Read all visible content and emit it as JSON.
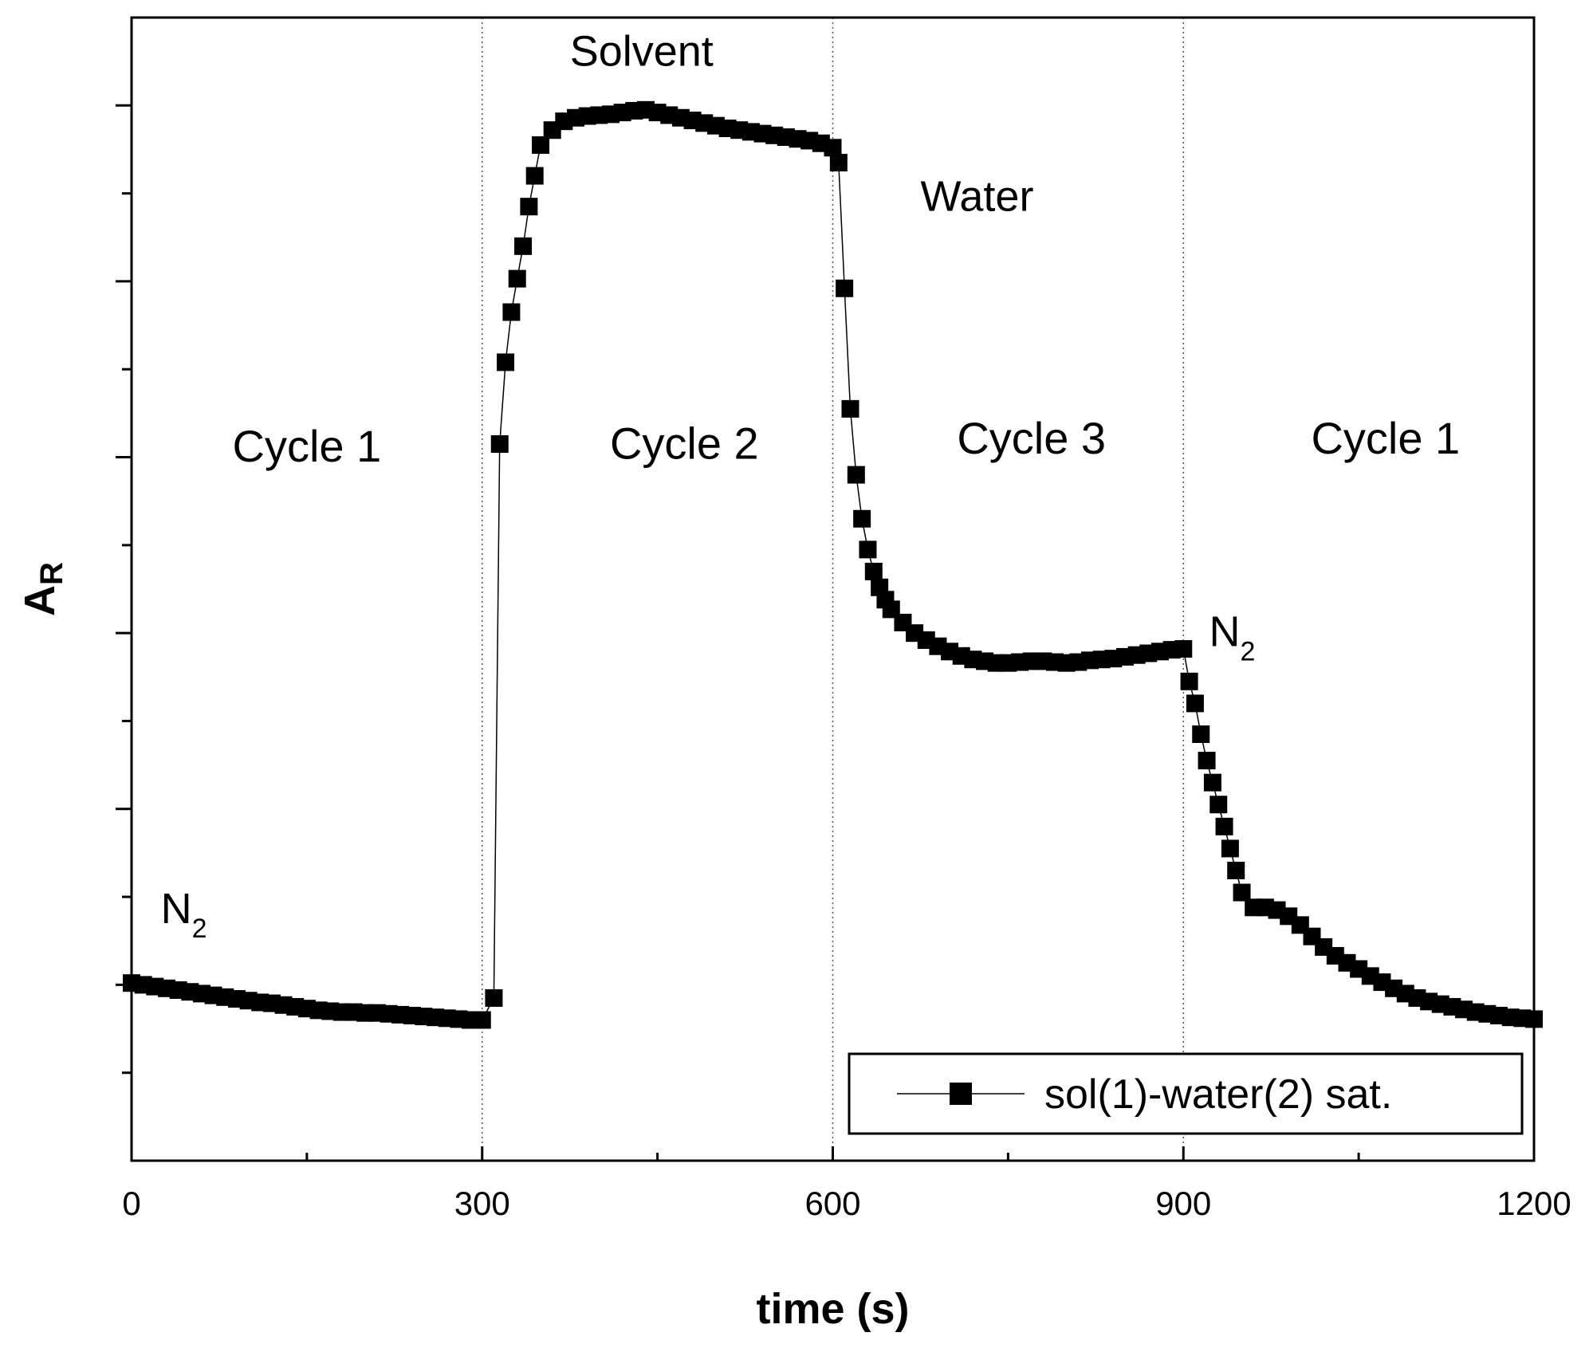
{
  "chart_data": {
    "type": "line",
    "title": "",
    "xlabel": "time (s)",
    "ylabel": {
      "main": "A",
      "sub": "R"
    },
    "xlim": [
      0,
      1200
    ],
    "ylim": [
      0,
      13
    ],
    "x_ticks": [
      0,
      300,
      600,
      900,
      1200
    ],
    "x_tick_labels": [
      "0",
      "300",
      "600",
      "900",
      "1200"
    ],
    "x_minor_ticks": [
      150,
      450,
      750,
      1050
    ],
    "y_ticks": [
      1,
      2,
      3,
      4,
      5,
      6,
      7,
      8,
      9,
      10,
      11,
      12
    ],
    "show_y_tick_labels": false,
    "grid": false,
    "vlines": [
      300,
      600,
      900
    ],
    "legend": {
      "position": "bottom-right"
    },
    "series": [
      {
        "name": "sol(1)-water(2) sat.",
        "color": "#000000",
        "marker": "square",
        "x": [
          0,
          10,
          20,
          30,
          40,
          50,
          60,
          70,
          80,
          90,
          100,
          110,
          120,
          130,
          140,
          150,
          160,
          170,
          180,
          190,
          200,
          210,
          220,
          230,
          240,
          250,
          260,
          270,
          280,
          290,
          300,
          310,
          315,
          320,
          325,
          330,
          335,
          340,
          345,
          350,
          360,
          370,
          380,
          390,
          400,
          410,
          420,
          430,
          440,
          450,
          460,
          470,
          480,
          490,
          500,
          510,
          520,
          530,
          540,
          550,
          560,
          570,
          580,
          590,
          600,
          605,
          610,
          615,
          620,
          625,
          630,
          635,
          640,
          645,
          650,
          660,
          670,
          680,
          690,
          700,
          710,
          720,
          730,
          740,
          750,
          760,
          770,
          780,
          790,
          800,
          810,
          820,
          830,
          840,
          850,
          860,
          870,
          880,
          890,
          900,
          905,
          910,
          915,
          920,
          925,
          930,
          935,
          940,
          945,
          950,
          960,
          970,
          980,
          990,
          1000,
          1010,
          1020,
          1030,
          1040,
          1050,
          1060,
          1070,
          1080,
          1090,
          1100,
          1110,
          1120,
          1130,
          1140,
          1150,
          1160,
          1170,
          1180,
          1190,
          1200
        ],
        "y": [
          2.02,
          2.0,
          1.98,
          1.96,
          1.94,
          1.92,
          1.9,
          1.88,
          1.86,
          1.84,
          1.82,
          1.8,
          1.79,
          1.77,
          1.75,
          1.73,
          1.71,
          1.7,
          1.69,
          1.69,
          1.68,
          1.68,
          1.67,
          1.66,
          1.65,
          1.64,
          1.63,
          1.62,
          1.61,
          1.6,
          1.6,
          1.85,
          8.15,
          9.08,
          9.65,
          10.03,
          10.4,
          10.85,
          11.2,
          11.55,
          11.72,
          11.82,
          11.86,
          11.88,
          11.89,
          11.9,
          11.92,
          11.94,
          11.95,
          11.92,
          11.89,
          11.86,
          11.83,
          11.8,
          11.77,
          11.74,
          11.72,
          11.7,
          11.68,
          11.66,
          11.64,
          11.62,
          11.6,
          11.57,
          11.52,
          11.35,
          9.92,
          8.55,
          7.8,
          7.3,
          6.95,
          6.7,
          6.52,
          6.38,
          6.27,
          6.12,
          6.0,
          5.92,
          5.85,
          5.79,
          5.74,
          5.7,
          5.68,
          5.66,
          5.66,
          5.67,
          5.68,
          5.68,
          5.67,
          5.66,
          5.67,
          5.69,
          5.7,
          5.71,
          5.73,
          5.75,
          5.77,
          5.79,
          5.81,
          5.82,
          5.45,
          5.2,
          4.85,
          4.55,
          4.3,
          4.05,
          3.8,
          3.55,
          3.3,
          3.05,
          2.88,
          2.88,
          2.85,
          2.78,
          2.68,
          2.55,
          2.43,
          2.33,
          2.25,
          2.18,
          2.1,
          2.03,
          1.96,
          1.9,
          1.85,
          1.81,
          1.78,
          1.75,
          1.72,
          1.69,
          1.67,
          1.65,
          1.63,
          1.62,
          1.61
        ]
      }
    ],
    "annotations": [
      {
        "id": "cycle1-left",
        "text": "Cycle 1",
        "x": 150,
        "y": 7.95
      },
      {
        "id": "cycle2",
        "text": "Cycle 2",
        "x": 473,
        "y": 7.98
      },
      {
        "id": "cycle3",
        "text": "Cycle 3",
        "x": 770,
        "y": 8.04
      },
      {
        "id": "cycle1-right",
        "text": "Cycle 1",
        "x": 1073,
        "y": 8.04
      },
      {
        "id": "solvent",
        "text": "Solvent",
        "x": 375,
        "y": 12.45
      },
      {
        "id": "water",
        "text": "Water",
        "x": 675,
        "y": 10.8
      },
      {
        "id": "n2-left",
        "text": "N",
        "sub": "2",
        "x": 25,
        "y": 2.7
      },
      {
        "id": "n2-right",
        "text": "N",
        "sub": "2",
        "x": 922,
        "y": 5.85
      }
    ]
  }
}
